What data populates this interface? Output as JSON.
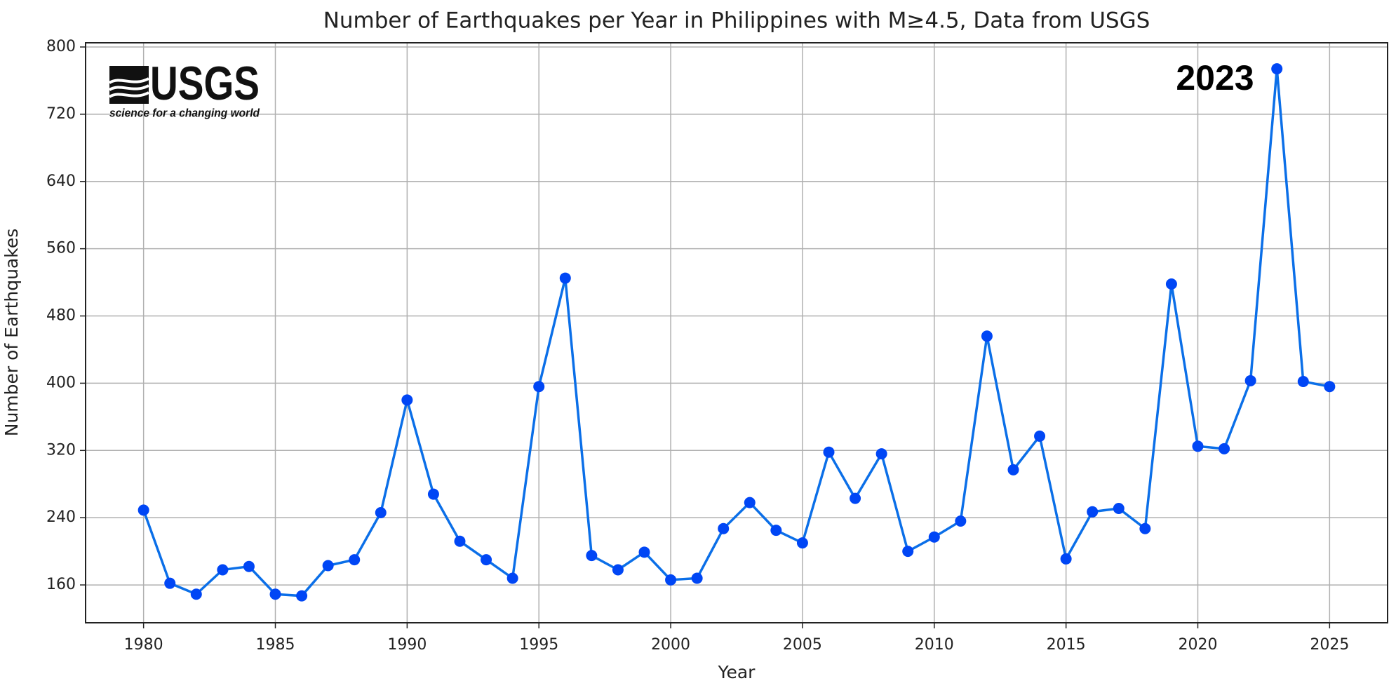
{
  "chart_data": {
    "type": "line",
    "title": "Number of Earthquakes per Year in Philippines with M≥4.5, Data from USGS",
    "x_label": "Year",
    "y_label": "Number of Earthquakes",
    "annotation": "2023",
    "logo": {
      "name": "USGS",
      "tagline": "science for a changing world"
    },
    "x": [
      1980,
      1981,
      1982,
      1983,
      1984,
      1985,
      1986,
      1987,
      1988,
      1989,
      1990,
      1991,
      1992,
      1993,
      1994,
      1995,
      1996,
      1997,
      1998,
      1999,
      2000,
      2001,
      2002,
      2003,
      2004,
      2005,
      2006,
      2007,
      2008,
      2009,
      2010,
      2011,
      2012,
      2013,
      2014,
      2015,
      2016,
      2017,
      2018,
      2019,
      2020,
      2021,
      2022,
      2023,
      2024,
      2025
    ],
    "series": [
      {
        "color": "#0b6fe8",
        "marker_color": "#0046f5",
        "values": [
          249,
          162,
          149,
          178,
          182,
          149,
          147,
          183,
          190,
          246,
          380,
          268,
          212,
          190,
          168,
          396,
          525,
          195,
          178,
          199,
          166,
          168,
          227,
          258,
          225,
          210,
          318,
          263,
          316,
          200,
          217,
          236,
          456,
          297,
          337,
          191,
          247,
          251,
          227,
          518,
          325,
          322,
          403,
          774,
          402,
          396
        ]
      }
    ],
    "xlim": [
      1977.8,
      2027.2
    ],
    "ylim": [
      115,
      805
    ],
    "xticks": [
      1980,
      1985,
      1990,
      1995,
      2000,
      2005,
      2010,
      2015,
      2020,
      2025
    ],
    "yticks": [
      160,
      240,
      320,
      400,
      480,
      560,
      640,
      720,
      800
    ],
    "grid": true
  }
}
